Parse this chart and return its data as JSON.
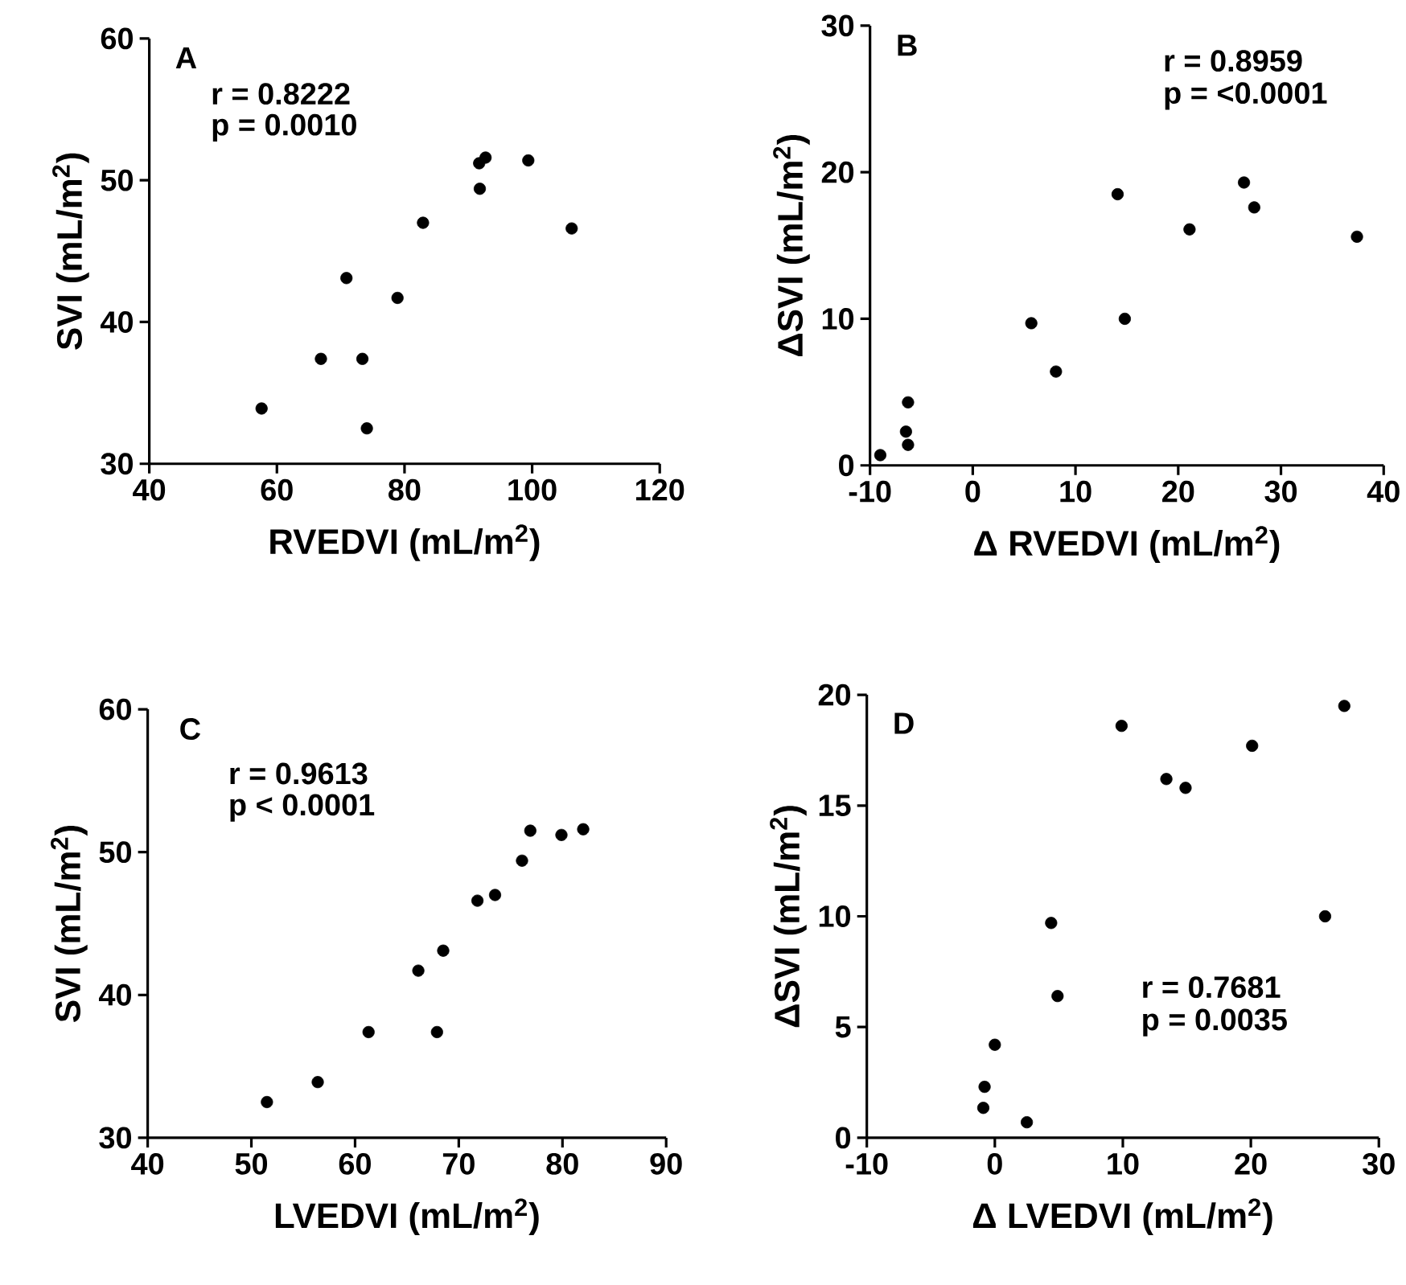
{
  "chart_data": [
    {
      "type": "scatter",
      "xlabel": "RVEDVI (mL/m$^{2}$)",
      "ylabel": "SVI (mL/m$^{2}$)",
      "annotations": [
        "A",
        "r = 0.8222",
        "p = 0.0010"
      ],
      "x": [
        57.6,
        66.9,
        73.4,
        74.1,
        70.9,
        78.9,
        82.9,
        91.8,
        91.7,
        92.7,
        99.4,
        106.2
      ],
      "values": [
        33.9,
        37.4,
        37.4,
        32.5,
        43.1,
        41.7,
        47.0,
        49.4,
        51.2,
        51.6,
        51.4,
        46.6
      ],
      "color": "#000000",
      "marker": "circle",
      "xlim": [
        40,
        120
      ],
      "ylim": [
        30,
        60
      ],
      "xticks": [
        40,
        60,
        80,
        100,
        120
      ],
      "yticks": [
        30,
        40,
        50,
        60
      ]
    },
    {
      "type": "scatter",
      "xlabel": "Δ RVEDVI (mL/m$^{2}$)",
      "ylabel": "ΔSVI (mL/m$^{2}$)",
      "annotations": [
        "B",
        "r = 0.8959",
        "p = <0.0001"
      ],
      "x": [
        -9.0,
        -6.5,
        -6.3,
        -6.3,
        5.7,
        8.1,
        14.1,
        14.8,
        21.1,
        26.4,
        27.4,
        37.4
      ],
      "values": [
        0.7,
        2.3,
        1.4,
        4.3,
        9.7,
        6.4,
        18.5,
        10.0,
        16.1,
        19.3,
        17.6,
        15.6
      ],
      "color": "#000000",
      "marker": "circle",
      "xlim": [
        -10,
        40
      ],
      "ylim": [
        0,
        30
      ],
      "xticks": [
        -10,
        0,
        10,
        20,
        30,
        40
      ],
      "yticks": [
        0,
        10,
        20,
        30
      ]
    },
    {
      "type": "scatter",
      "xlabel": "LVEDVI (mL/m$^{2}$)",
      "ylabel": "SVI (mL/m$^{2}$)",
      "annotations": [
        "C",
        "r = 0.9613",
        "p < 0.0001"
      ],
      "x": [
        51.5,
        56.4,
        61.3,
        67.9,
        66.1,
        68.5,
        71.8,
        73.5,
        76.1,
        76.9,
        79.9,
        82.0
      ],
      "values": [
        32.5,
        33.9,
        37.4,
        37.4,
        41.7,
        43.1,
        46.6,
        47.0,
        49.4,
        51.5,
        51.2,
        51.6
      ],
      "color": "#000000",
      "marker": "circle",
      "xlim": [
        40,
        90
      ],
      "ylim": [
        30,
        60
      ],
      "xticks": [
        40,
        50,
        60,
        70,
        80,
        90
      ],
      "yticks": [
        30,
        40,
        50,
        60
      ]
    },
    {
      "type": "scatter",
      "xlabel": "Δ LVEDVI (mL/m$^{2}$)",
      "ylabel": "ΔSVI (mL/m$^{2}$)",
      "annotations": [
        "D",
        "r = 0.7681",
        "p = 0.0035"
      ],
      "x": [
        -0.9,
        -0.8,
        0.0,
        2.5,
        4.4,
        4.9,
        9.9,
        13.4,
        14.9,
        20.1,
        25.8,
        27.3
      ],
      "values": [
        1.35,
        2.3,
        4.2,
        0.7,
        9.7,
        6.4,
        18.6,
        16.2,
        15.8,
        17.7,
        10.0,
        19.5
      ],
      "color": "#000000",
      "marker": "circle",
      "xlim": [
        -10,
        30
      ],
      "ylim": [
        0,
        20
      ],
      "xticks": [
        -10,
        0,
        10,
        20,
        30
      ],
      "yticks": [
        0,
        5,
        10,
        15,
        20
      ]
    }
  ]
}
